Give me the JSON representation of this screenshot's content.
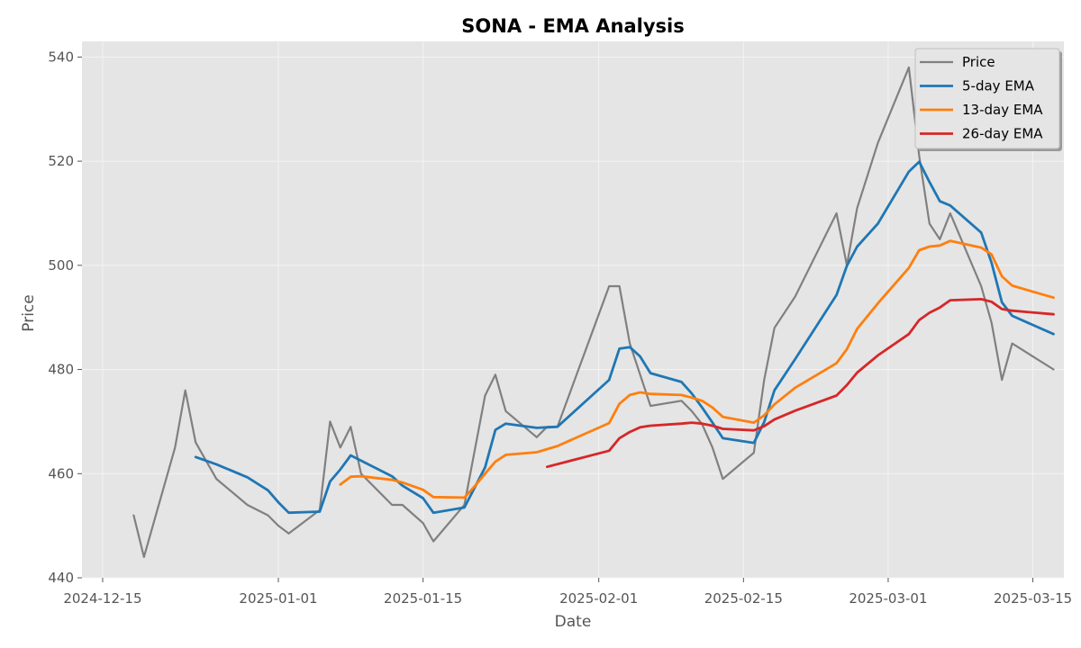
{
  "chart_data": {
    "type": "line",
    "title": "SONA - EMA Analysis",
    "xlabel": "Date",
    "ylabel": "Price",
    "xlim": [
      "2024-12-13",
      "2025-03-18"
    ],
    "ylim": [
      440,
      543
    ],
    "x_ticks": [
      "2024-12-15",
      "2025-01-01",
      "2025-01-15",
      "2025-02-01",
      "2025-02-15",
      "2025-03-01",
      "2025-03-15"
    ],
    "y_ticks": [
      440,
      460,
      480,
      500,
      520,
      540
    ],
    "grid": true,
    "legend_position": "top-right",
    "series": [
      {
        "name": "Price",
        "color": "#808080",
        "points": [
          [
            "2024-12-18",
            452
          ],
          [
            "2024-12-19",
            444
          ],
          [
            "2024-12-22",
            465
          ],
          [
            "2024-12-23",
            476
          ],
          [
            "2024-12-24",
            466
          ],
          [
            "2024-12-26",
            459
          ],
          [
            "2024-12-29",
            454
          ],
          [
            "2024-12-31",
            452
          ],
          [
            "2025-01-01",
            450
          ],
          [
            "2025-01-02",
            448.5
          ],
          [
            "2025-01-05",
            453
          ],
          [
            "2025-01-06",
            470
          ],
          [
            "2025-01-07",
            465
          ],
          [
            "2025-01-08",
            469
          ],
          [
            "2025-01-09",
            460
          ],
          [
            "2025-01-12",
            454
          ],
          [
            "2025-01-13",
            454
          ],
          [
            "2025-01-15",
            450.5
          ],
          [
            "2025-01-16",
            447
          ],
          [
            "2025-01-19",
            454
          ],
          [
            "2025-01-21",
            475
          ],
          [
            "2025-01-22",
            479
          ],
          [
            "2025-01-23",
            472
          ],
          [
            "2025-01-26",
            467
          ],
          [
            "2025-01-27",
            469
          ],
          [
            "2025-01-28",
            469
          ],
          [
            "2025-02-02",
            496
          ],
          [
            "2025-02-03",
            496
          ],
          [
            "2025-02-04",
            485
          ],
          [
            "2025-02-05",
            479
          ],
          [
            "2025-02-06",
            473
          ],
          [
            "2025-02-09",
            474
          ],
          [
            "2025-02-10",
            472
          ],
          [
            "2025-02-11",
            469.5
          ],
          [
            "2025-02-12",
            465
          ],
          [
            "2025-02-13",
            459
          ],
          [
            "2025-02-16",
            464
          ],
          [
            "2025-02-17",
            478
          ],
          [
            "2025-02-18",
            488
          ],
          [
            "2025-02-20",
            494
          ],
          [
            "2025-02-24",
            510
          ],
          [
            "2025-02-25",
            500
          ],
          [
            "2025-02-26",
            511
          ],
          [
            "2025-02-28",
            523.5
          ],
          [
            "2025-03-03",
            538
          ],
          [
            "2025-03-04",
            521
          ],
          [
            "2025-03-05",
            508
          ],
          [
            "2025-03-06",
            505
          ],
          [
            "2025-03-07",
            510
          ],
          [
            "2025-03-10",
            496
          ],
          [
            "2025-03-11",
            489
          ],
          [
            "2025-03-12",
            478
          ],
          [
            "2025-03-13",
            485
          ],
          [
            "2025-03-17",
            480
          ]
        ]
      },
      {
        "name": "5-day EMA",
        "color": "#1f77b4",
        "points": [
          [
            "2024-12-24",
            463.2
          ],
          [
            "2024-12-26",
            461.8
          ],
          [
            "2024-12-29",
            459.3
          ],
          [
            "2024-12-31",
            456.8
          ],
          [
            "2025-01-01",
            454.5
          ],
          [
            "2025-01-02",
            452.5
          ],
          [
            "2025-01-05",
            452.7
          ],
          [
            "2025-01-06",
            458.5
          ],
          [
            "2025-01-07",
            460.8
          ],
          [
            "2025-01-08",
            463.5
          ],
          [
            "2025-01-12",
            459.5
          ],
          [
            "2025-01-13",
            457.7
          ],
          [
            "2025-01-15",
            455.3
          ],
          [
            "2025-01-16",
            452.5
          ],
          [
            "2025-01-19",
            453.5
          ],
          [
            "2025-01-21",
            461.2
          ],
          [
            "2025-01-22",
            468.4
          ],
          [
            "2025-01-23",
            469.6
          ],
          [
            "2025-01-26",
            468.8
          ],
          [
            "2025-01-27",
            468.9
          ],
          [
            "2025-01-28",
            469.0
          ],
          [
            "2025-02-02",
            478.0
          ],
          [
            "2025-02-03",
            484.0
          ],
          [
            "2025-02-04",
            484.3
          ],
          [
            "2025-02-05",
            482.5
          ],
          [
            "2025-02-06",
            479.3
          ],
          [
            "2025-02-09",
            477.6
          ],
          [
            "2025-02-10",
            475.4
          ],
          [
            "2025-02-11",
            472.7
          ],
          [
            "2025-02-12",
            469.8
          ],
          [
            "2025-02-13",
            466.8
          ],
          [
            "2025-02-16",
            465.9
          ],
          [
            "2025-02-17",
            469.9
          ],
          [
            "2025-02-18",
            476.0
          ],
          [
            "2025-02-20",
            482.0
          ],
          [
            "2025-02-24",
            494.3
          ],
          [
            "2025-02-25",
            499.9
          ],
          [
            "2025-02-26",
            503.6
          ],
          [
            "2025-02-28",
            508.0
          ],
          [
            "2025-03-03",
            518.0
          ],
          [
            "2025-03-04",
            519.9
          ],
          [
            "2025-03-05",
            516.0
          ],
          [
            "2025-03-06",
            512.3
          ],
          [
            "2025-03-07",
            511.5
          ],
          [
            "2025-03-10",
            506.3
          ],
          [
            "2025-03-11",
            500.5
          ],
          [
            "2025-03-12",
            492.9
          ],
          [
            "2025-03-13",
            490.3
          ],
          [
            "2025-03-17",
            486.8
          ]
        ]
      },
      {
        "name": "13-day EMA",
        "color": "#ff7f0e",
        "points": [
          [
            "2025-01-07",
            457.9
          ],
          [
            "2025-01-08",
            459.4
          ],
          [
            "2025-01-09",
            459.5
          ],
          [
            "2025-01-12",
            458.8
          ],
          [
            "2025-01-13",
            458.3
          ],
          [
            "2025-01-15",
            456.9
          ],
          [
            "2025-01-16",
            455.5
          ],
          [
            "2025-01-19",
            455.4
          ],
          [
            "2025-01-20",
            457.6
          ],
          [
            "2025-01-21",
            460.0
          ],
          [
            "2025-01-22",
            462.3
          ],
          [
            "2025-01-23",
            463.6
          ],
          [
            "2025-01-26",
            464.1
          ],
          [
            "2025-01-28",
            465.3
          ],
          [
            "2025-02-02",
            469.7
          ],
          [
            "2025-02-03",
            473.4
          ],
          [
            "2025-02-04",
            475.1
          ],
          [
            "2025-02-05",
            475.6
          ],
          [
            "2025-02-06",
            475.3
          ],
          [
            "2025-02-09",
            475.1
          ],
          [
            "2025-02-10",
            474.6
          ],
          [
            "2025-02-11",
            474.0
          ],
          [
            "2025-02-12",
            472.7
          ],
          [
            "2025-02-13",
            470.9
          ],
          [
            "2025-02-16",
            469.8
          ],
          [
            "2025-02-17",
            471.2
          ],
          [
            "2025-02-18",
            473.3
          ],
          [
            "2025-02-20",
            476.5
          ],
          [
            "2025-02-24",
            481.2
          ],
          [
            "2025-02-25",
            483.9
          ],
          [
            "2025-02-26",
            487.8
          ],
          [
            "2025-02-28",
            492.7
          ],
          [
            "2025-03-03",
            499.5
          ],
          [
            "2025-03-04",
            502.9
          ],
          [
            "2025-03-05",
            503.6
          ],
          [
            "2025-03-06",
            503.8
          ],
          [
            "2025-03-07",
            504.7
          ],
          [
            "2025-03-10",
            503.4
          ],
          [
            "2025-03-11",
            502.1
          ],
          [
            "2025-03-12",
            497.9
          ],
          [
            "2025-03-13",
            496.1
          ],
          [
            "2025-03-17",
            493.8
          ]
        ]
      },
      {
        "name": "26-day EMA",
        "color": "#d62728",
        "points": [
          [
            "2025-01-27",
            461.3
          ],
          [
            "2025-02-02",
            464.4
          ],
          [
            "2025-02-03",
            466.8
          ],
          [
            "2025-02-04",
            468.0
          ],
          [
            "2025-02-05",
            468.9
          ],
          [
            "2025-02-06",
            469.2
          ],
          [
            "2025-02-09",
            469.6
          ],
          [
            "2025-02-10",
            469.8
          ],
          [
            "2025-02-11",
            469.6
          ],
          [
            "2025-02-12",
            469.2
          ],
          [
            "2025-02-13",
            468.6
          ],
          [
            "2025-02-16",
            468.3
          ],
          [
            "2025-02-17",
            469.1
          ],
          [
            "2025-02-18",
            470.4
          ],
          [
            "2025-02-20",
            472.1
          ],
          [
            "2025-02-24",
            475.0
          ],
          [
            "2025-02-25",
            477.0
          ],
          [
            "2025-02-26",
            479.4
          ],
          [
            "2025-02-28",
            482.7
          ],
          [
            "2025-03-03",
            486.8
          ],
          [
            "2025-03-04",
            489.5
          ],
          [
            "2025-03-05",
            490.9
          ],
          [
            "2025-03-06",
            491.9
          ],
          [
            "2025-03-07",
            493.3
          ],
          [
            "2025-03-10",
            493.5
          ],
          [
            "2025-03-11",
            493.0
          ],
          [
            "2025-03-12",
            491.6
          ],
          [
            "2025-03-13",
            491.3
          ],
          [
            "2025-03-17",
            490.6
          ]
        ]
      }
    ]
  }
}
